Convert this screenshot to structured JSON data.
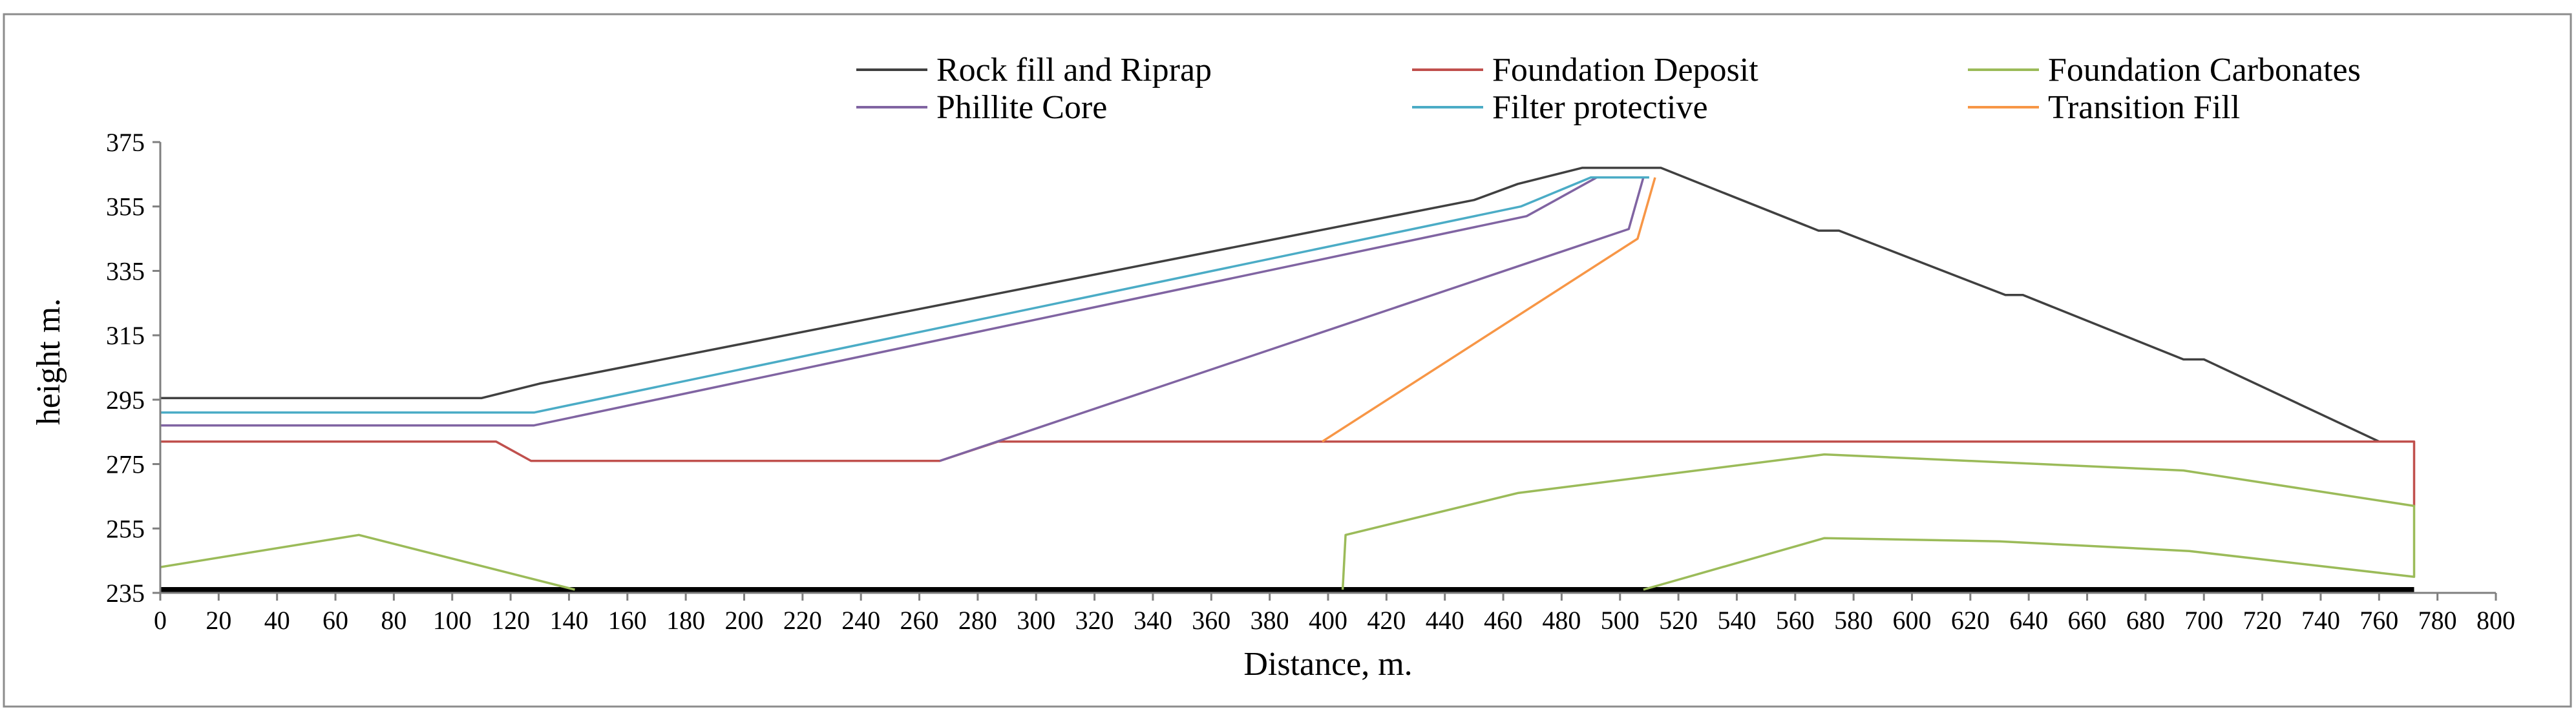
{
  "chart_data": {
    "type": "line",
    "title": "",
    "xlabel": "Distance, m.",
    "ylabel": "height m.",
    "xlim": [
      0,
      800
    ],
    "ylim": [
      235,
      375
    ],
    "x_ticks": [
      0,
      20,
      40,
      60,
      80,
      100,
      120,
      140,
      160,
      180,
      200,
      220,
      240,
      260,
      280,
      300,
      320,
      340,
      360,
      380,
      400,
      420,
      440,
      460,
      480,
      500,
      520,
      540,
      560,
      580,
      600,
      620,
      640,
      660,
      680,
      700,
      720,
      740,
      760,
      780,
      800
    ],
    "y_ticks": [
      235,
      255,
      275,
      295,
      315,
      335,
      355,
      375
    ],
    "grid": false,
    "legend": "top",
    "series": [
      {
        "name": "Rock fill and Riprap",
        "color": "#404040",
        "segments": [
          [
            [
              0,
              295.5
            ],
            [
              110,
              295.5
            ],
            [
              130,
              300
            ],
            [
              450,
              357
            ],
            [
              465,
              362
            ],
            [
              487,
              367
            ],
            [
              514,
              367
            ],
            [
              568,
              347.5
            ],
            [
              575,
              347.5
            ],
            [
              632,
              327.5
            ],
            [
              638,
              327.5
            ],
            [
              693,
              307.5
            ],
            [
              700,
              307.5
            ],
            [
              760,
              282
            ]
          ]
        ]
      },
      {
        "name": "Foundation Deposit",
        "color": "#c0504d",
        "segments": [
          [
            [
              0,
              282
            ],
            [
              115,
              282
            ],
            [
              127,
              276
            ],
            [
              267,
              276
            ],
            [
              287,
              282
            ],
            [
              772,
              282
            ],
            [
              772,
              262
            ]
          ]
        ]
      },
      {
        "name": "Foundation Carbonates",
        "color": "#9bbb59",
        "segments": [
          [
            [
              0,
              243
            ],
            [
              68,
              253
            ],
            [
              142,
              236
            ]
          ],
          [
            [
              405,
              236
            ],
            [
              406,
              253
            ],
            [
              465,
              266
            ],
            [
              570,
              278
            ],
            [
              693,
              273
            ],
            [
              772,
              262
            ],
            [
              772,
              240
            ],
            [
              695,
              248
            ],
            [
              630,
              251
            ],
            [
              570,
              252
            ],
            [
              508,
              236
            ]
          ]
        ]
      },
      {
        "name": "Phillite Core",
        "color": "#8064a2",
        "segments": [
          [
            [
              0,
              287
            ],
            [
              128,
              287
            ],
            [
              468,
              352
            ],
            [
              492,
              364
            ]
          ],
          [
            [
              267,
              276
            ],
            [
              503,
              348
            ],
            [
              508,
              364
            ]
          ]
        ]
      },
      {
        "name": "Filter protective",
        "color": "#4bacc6",
        "segments": [
          [
            [
              0,
              291
            ],
            [
              128,
              291
            ],
            [
              466,
              355
            ],
            [
              490,
              364
            ],
            [
              510,
              364
            ]
          ]
        ]
      },
      {
        "name": "Transition Fill",
        "color": "#f79646",
        "segments": [
          [
            [
              398,
              282
            ],
            [
              506,
              345
            ],
            [
              512,
              364
            ]
          ]
        ]
      }
    ],
    "baseline": {
      "y": 236,
      "from": 0,
      "to": 772,
      "color": "#000000"
    }
  }
}
